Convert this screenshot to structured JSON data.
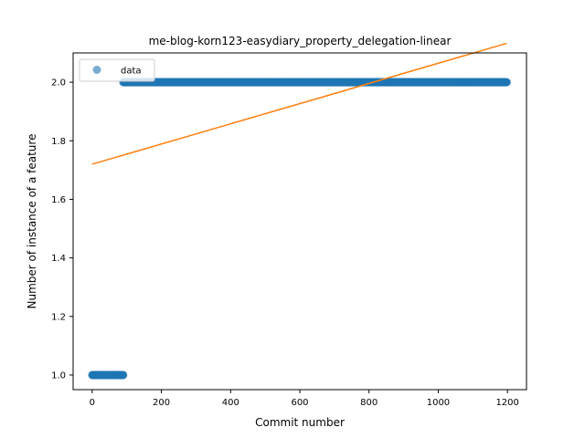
{
  "chart_data": {
    "type": "scatter",
    "title": "me-blog-korn123-easydiary_property_delegation-linear",
    "xlabel": "Commit number",
    "ylabel": "Number of instance of a feature",
    "xlim": [
      -55,
      1255
    ],
    "ylim": [
      0.95,
      2.1
    ],
    "xticks": [
      0,
      200,
      400,
      600,
      800,
      1000,
      1200
    ],
    "yticks": [
      1.0,
      1.2,
      1.4,
      1.6,
      1.8,
      2.0
    ],
    "xtick_labels": [
      "0",
      "200",
      "400",
      "600",
      "800",
      "1000",
      "1200"
    ],
    "ytick_labels": [
      "1.0",
      "1.2",
      "1.4",
      "1.6",
      "1.8",
      "2.0"
    ],
    "grid": false,
    "legend": {
      "position": "top-left",
      "entries": [
        "data"
      ]
    },
    "series": [
      {
        "name": "data",
        "kind": "scatter",
        "color": "#1f77b4",
        "segments": [
          {
            "x_start": 0,
            "x_end": 90,
            "y": 1.0
          },
          {
            "x_start": 90,
            "x_end": 1198,
            "y": 2.0
          }
        ]
      },
      {
        "kind": "line",
        "color": "#ff7f0e",
        "x": [
          0,
          1198
        ],
        "y": [
          1.72,
          2.133
        ]
      }
    ]
  }
}
